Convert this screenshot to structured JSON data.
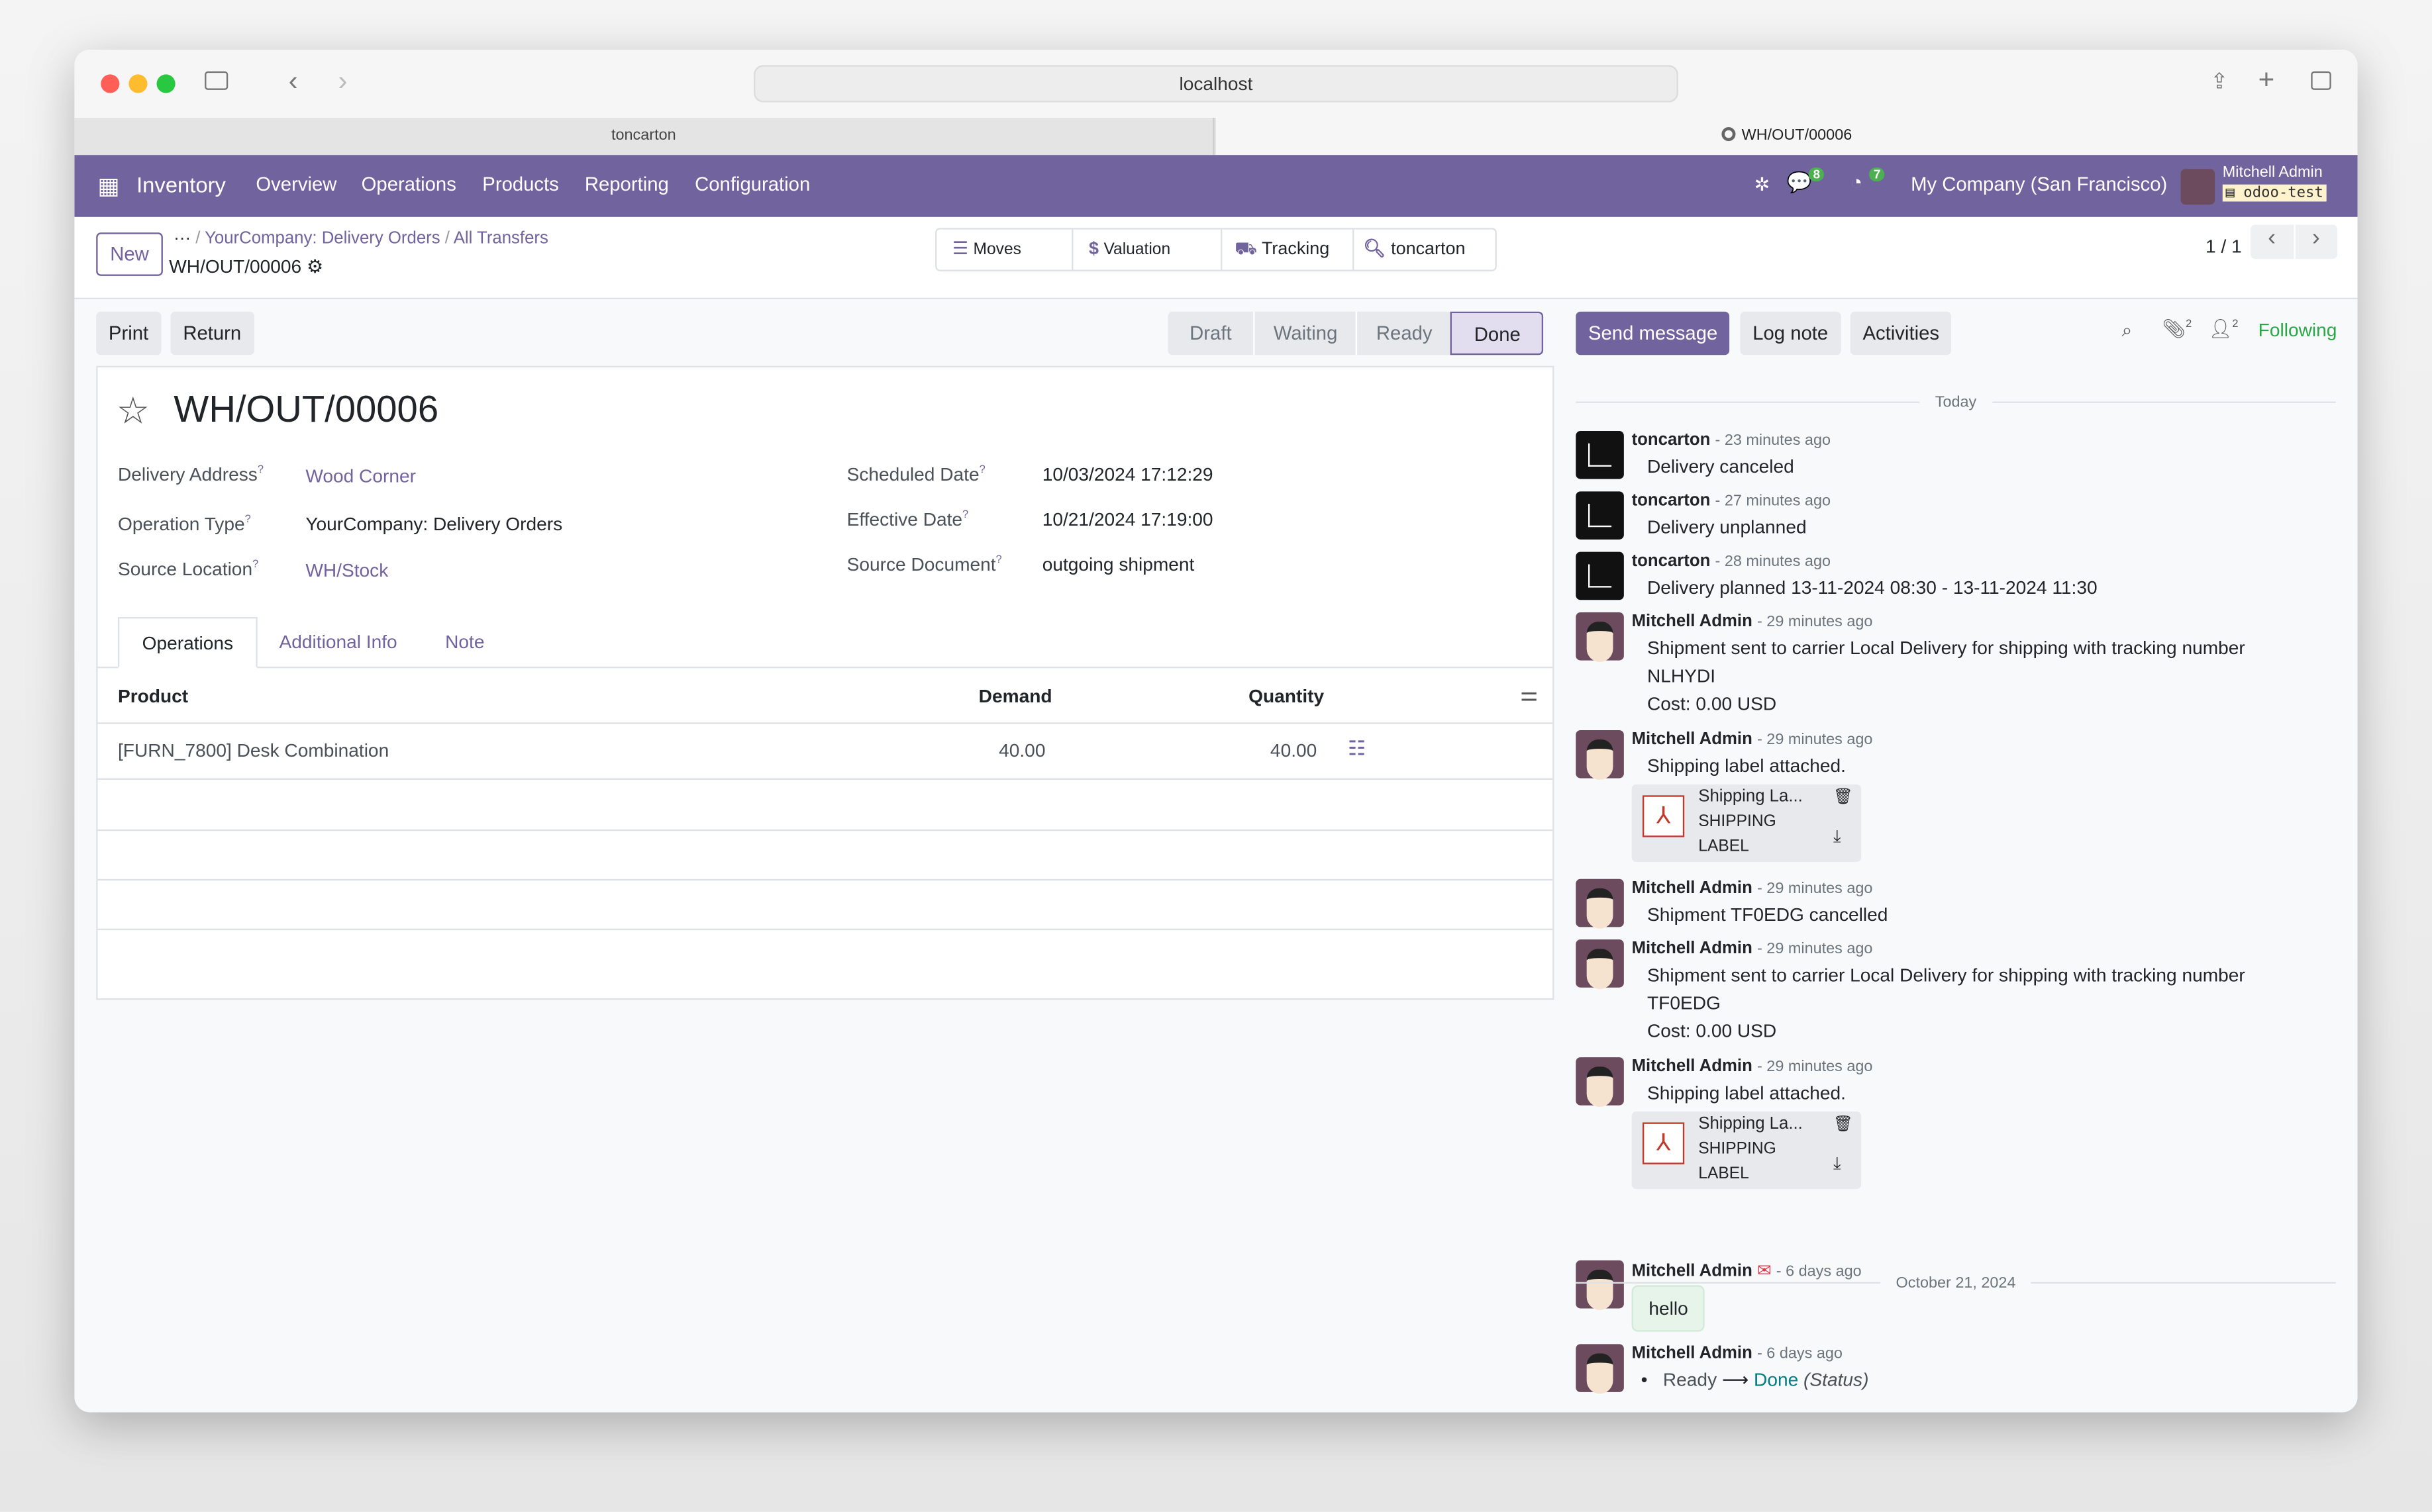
{
  "browser": {
    "url": "localhost",
    "tabs": [
      {
        "label": "toncarton"
      },
      {
        "label": "WH/OUT/00006"
      }
    ]
  },
  "navbar": {
    "app": "Inventory",
    "menu": [
      "Overview",
      "Operations",
      "Products",
      "Reporting",
      "Configuration"
    ],
    "messages_count": "8",
    "activities_count": "7",
    "company": "My Company (San Francisco)",
    "user": "Mitchell Admin",
    "database": "odoo-test",
    "color": "#71639e"
  },
  "control": {
    "new": "New",
    "breadcrumb": [
      "YourCompany: Delivery Orders",
      "All Transfers"
    ],
    "record": "WH/OUT/00006",
    "smart_buttons": [
      "Moves",
      "Valuation",
      "Tracking",
      "toncarton"
    ],
    "pager": "1 / 1"
  },
  "actions": {
    "print": "Print",
    "return": "Return",
    "status": [
      "Draft",
      "Waiting",
      "Ready",
      "Done"
    ],
    "current_status": "Done"
  },
  "form": {
    "title": "WH/OUT/00006",
    "left": [
      {
        "label": "Delivery Address",
        "value": "Wood Corner"
      },
      {
        "label": "Operation Type",
        "value": "YourCompany: Delivery Orders"
      },
      {
        "label": "Source Location",
        "value": "WH/Stock"
      }
    ],
    "right": [
      {
        "label": "Scheduled Date",
        "value": "10/03/2024 17:12:29"
      },
      {
        "label": "Effective Date",
        "value": "10/21/2024 17:19:00"
      },
      {
        "label": "Source Document",
        "value": "outgoing shipment"
      }
    ],
    "tabs": [
      "Operations",
      "Additional Info",
      "Note"
    ],
    "columns": [
      "Product",
      "Demand",
      "Quantity"
    ],
    "lines": [
      {
        "product": "[FURN_7800] Desk Combination",
        "demand": "40.00",
        "quantity": "40.00"
      }
    ]
  },
  "chatter": {
    "send": "Send message",
    "log": "Log note",
    "activities": "Activities",
    "attachments": "2",
    "followers": "2",
    "following": "Following",
    "today": "Today",
    "older": "October 21, 2024",
    "messages": [
      {
        "author": "toncarton",
        "time": "23 minutes ago",
        "lines": [
          "Delivery canceled"
        ]
      },
      {
        "author": "toncarton",
        "time": "27 minutes ago",
        "lines": [
          "Delivery unplanned"
        ]
      },
      {
        "author": "toncarton",
        "time": "28 minutes ago",
        "lines": [
          "Delivery planned 13-11-2024 08:30 - 13-11-2024 11:30"
        ]
      },
      {
        "author": "Mitchell Admin",
        "time": "29 minutes ago",
        "lines": [
          "Shipment sent to carrier Local Delivery for shipping with tracking number",
          "NLHYDI",
          "Cost: 0.00 USD"
        ]
      },
      {
        "author": "Mitchell Admin",
        "time": "29 minutes ago",
        "lines": [
          "Shipping label attached."
        ],
        "attachment": {
          "name": "Shipping La...",
          "type1": "SHIPPING",
          "type2": "LABEL"
        }
      },
      {
        "author": "Mitchell Admin",
        "time": "29 minutes ago",
        "lines": [
          "Shipment TF0EDG cancelled"
        ]
      },
      {
        "author": "Mitchell Admin",
        "time": "29 minutes ago",
        "lines": [
          "Shipment sent to carrier Local Delivery for shipping with tracking number",
          "TF0EDG",
          "Cost: 0.00 USD"
        ]
      },
      {
        "author": "Mitchell Admin",
        "time": "29 minutes ago",
        "lines": [
          "Shipping label attached."
        ],
        "attachment": {
          "name": "Shipping La...",
          "type1": "SHIPPING",
          "type2": "LABEL"
        }
      },
      {
        "author": "Mitchell Admin",
        "time": "6 days ago",
        "lines": [
          "hello"
        ]
      },
      {
        "author": "Mitchell Admin",
        "time": "6 days ago",
        "tracking": {
          "from": "Ready",
          "to": "Done",
          "field": "(Status)"
        }
      }
    ]
  }
}
